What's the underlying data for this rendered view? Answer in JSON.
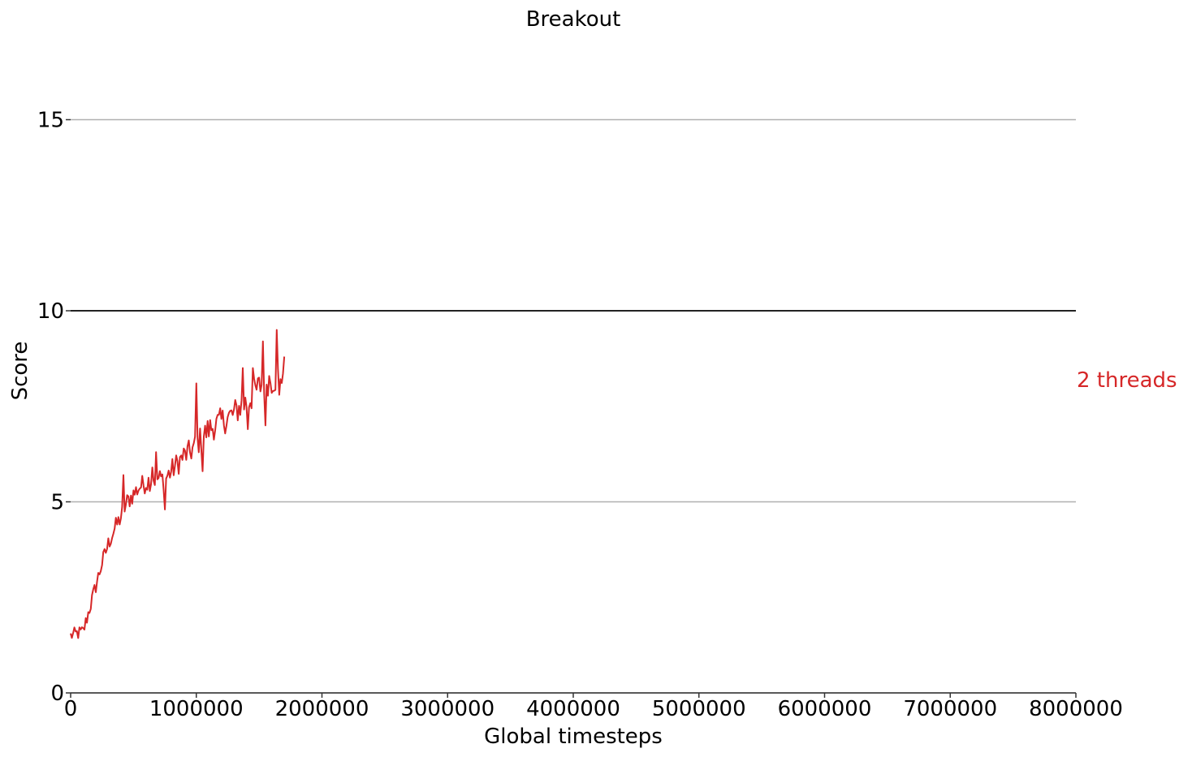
{
  "chart_data": {
    "type": "line",
    "title": "Breakout",
    "xlabel": "Global timesteps",
    "ylabel": "Score",
    "xlim": [
      0,
      8000000
    ],
    "ylim": [
      0,
      17
    ],
    "x_ticks": [
      "0",
      "1000000",
      "2000000",
      "3000000",
      "4000000",
      "5000000",
      "6000000",
      "7000000",
      "8000000"
    ],
    "y_ticks": [
      "0",
      "5",
      "10",
      "15"
    ],
    "grid": "horizontal",
    "reference_line": 10,
    "legend_placement": "right",
    "series": [
      {
        "name": "2 threads",
        "color": "#d62728",
        "anchors": [
          [
            0,
            1.5
          ],
          [
            100000,
            1.6
          ],
          [
            150000,
            2.2
          ],
          [
            200000,
            2.8
          ],
          [
            250000,
            3.4
          ],
          [
            300000,
            3.9
          ],
          [
            350000,
            4.3
          ],
          [
            400000,
            4.6
          ],
          [
            450000,
            5.0
          ],
          [
            500000,
            5.2
          ],
          [
            550000,
            5.4
          ],
          [
            600000,
            5.5
          ],
          [
            650000,
            5.6
          ],
          [
            700000,
            5.6
          ],
          [
            750000,
            5.6
          ],
          [
            800000,
            5.8
          ],
          [
            850000,
            6.0
          ],
          [
            900000,
            6.2
          ],
          [
            950000,
            6.3
          ],
          [
            1000000,
            6.5
          ],
          [
            1050000,
            6.7
          ],
          [
            1100000,
            6.9
          ],
          [
            1150000,
            7.0
          ],
          [
            1200000,
            7.1
          ],
          [
            1250000,
            7.2
          ],
          [
            1300000,
            7.3
          ],
          [
            1350000,
            7.5
          ],
          [
            1400000,
            7.6
          ],
          [
            1450000,
            7.8
          ],
          [
            1500000,
            8.0
          ],
          [
            1550000,
            8.2
          ],
          [
            1600000,
            8.2
          ],
          [
            1650000,
            8.3
          ],
          [
            1700000,
            8.4
          ]
        ],
        "noise": 0.45,
        "spikes": [
          [
            420000,
            5.7
          ],
          [
            650000,
            5.9
          ],
          [
            680000,
            6.3
          ],
          [
            750000,
            4.8
          ],
          [
            1000000,
            8.1
          ],
          [
            1050000,
            5.8
          ],
          [
            1370000,
            8.5
          ],
          [
            1410000,
            6.9
          ],
          [
            1450000,
            8.5
          ],
          [
            1530000,
            9.2
          ],
          [
            1550000,
            7.0
          ],
          [
            1640000,
            9.5
          ],
          [
            1660000,
            7.8
          ],
          [
            1700000,
            8.8
          ]
        ],
        "x_step": 10000
      }
    ]
  }
}
